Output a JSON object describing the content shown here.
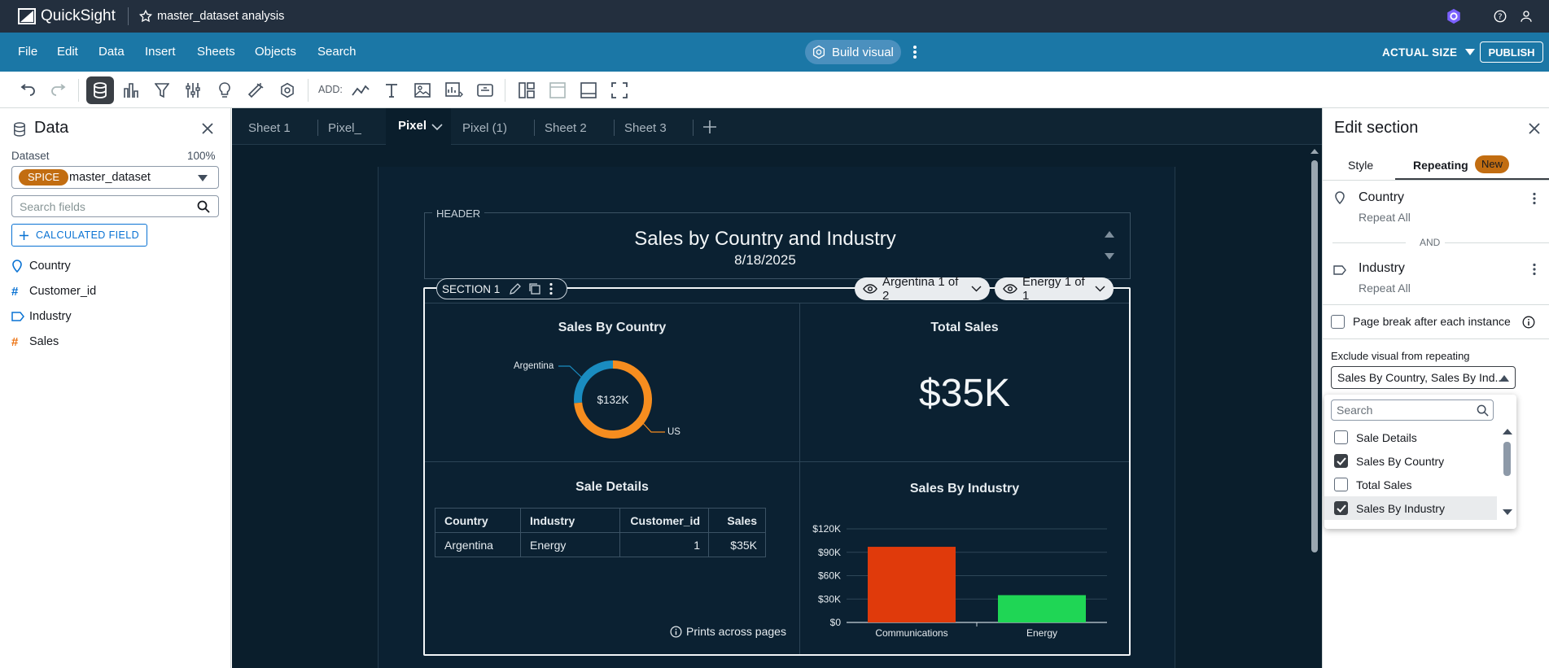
{
  "app": {
    "name": "QuickSight",
    "analysis_title": "master_dataset analysis"
  },
  "menu": {
    "items": [
      "File",
      "Edit",
      "Data",
      "Insert",
      "Sheets",
      "Objects",
      "Search"
    ],
    "build_visual": "Build visual",
    "size_mode": "ACTUAL SIZE",
    "publish": "PUBLISH"
  },
  "toolbar": {
    "add_label": "ADD:"
  },
  "data_panel": {
    "title": "Data",
    "dataset_label": "Dataset",
    "dataset_pct": "100%",
    "spice_badge": "SPICE",
    "dataset_name": "master_dataset",
    "search_placeholder": "Search fields",
    "calc_field": "CALCULATED FIELD",
    "fields": [
      {
        "name": "Country",
        "icon": "location-pin-icon",
        "color": "#0972d3"
      },
      {
        "name": "Customer_id",
        "icon": "hash-icon",
        "color": "#0972d3"
      },
      {
        "name": "Industry",
        "icon": "tag-icon",
        "color": "#0972d3"
      },
      {
        "name": "Sales",
        "icon": "hash-icon",
        "color": "#ec7211"
      }
    ]
  },
  "sheets": {
    "tabs": [
      "Sheet 1",
      "Pixel_",
      "Pixel",
      "Pixel (1)",
      "Sheet 2",
      "Sheet 3"
    ],
    "active": "Pixel"
  },
  "report": {
    "header_label": "HEADER",
    "title": "Sales by Country and Industry",
    "date": "8/18/2025",
    "section_label": "SECTION 1",
    "pill_country": "Argentina 1 of 2",
    "pill_industry": "Energy 1 of 1",
    "prints_across": "Prints across pages"
  },
  "visuals": {
    "sales_by_country": {
      "title": "Sales By Country",
      "center_value": "$132K",
      "label_argentina": "Argentina",
      "label_us": "US"
    },
    "total_sales": {
      "title": "Total Sales",
      "value": "$35K"
    },
    "sale_details": {
      "title": "Sale Details",
      "columns": [
        "Country",
        "Industry",
        "Customer_id",
        "Sales"
      ],
      "rows": [
        [
          "Argentina",
          "Energy",
          "1",
          "$35K"
        ]
      ]
    },
    "sales_by_industry": {
      "title": "Sales By Industry"
    }
  },
  "chart_data": [
    {
      "type": "pie",
      "title": "Sales By Country",
      "categories": [
        "Argentina",
        "US"
      ],
      "values": [
        35,
        97
      ],
      "colors": [
        "#1a8cc0",
        "#f68d1f"
      ]
    },
    {
      "type": "bar",
      "title": "Sales By Industry",
      "categories": [
        "Communications",
        "Energy"
      ],
      "values": [
        97000,
        35000
      ],
      "colors": [
        "#e03a0b",
        "#1fd655"
      ],
      "ylim": [
        0,
        120000
      ],
      "yticks": [
        "$0",
        "$30K",
        "$60K",
        "$90K",
        "$120K"
      ]
    }
  ],
  "right_panel": {
    "title": "Edit section",
    "tab_style": "Style",
    "tab_repeating": "Repeating",
    "new_badge": "New",
    "repeat_items": [
      {
        "name": "Country",
        "sub": "Repeat All"
      },
      {
        "name": "Industry",
        "sub": "Repeat All"
      }
    ],
    "and_label": "AND",
    "page_break_label": "Page break after each instance",
    "exclude_label": "Exclude visual from repeating",
    "exclude_value": "Sales By Country, Sales By Ind...",
    "dropdown_search_placeholder": "Search",
    "options": [
      {
        "label": "Sale Details",
        "checked": false
      },
      {
        "label": "Sales By Country",
        "checked": true
      },
      {
        "label": "Total Sales",
        "checked": false
      },
      {
        "label": "Sales By Industry",
        "checked": true
      }
    ]
  }
}
